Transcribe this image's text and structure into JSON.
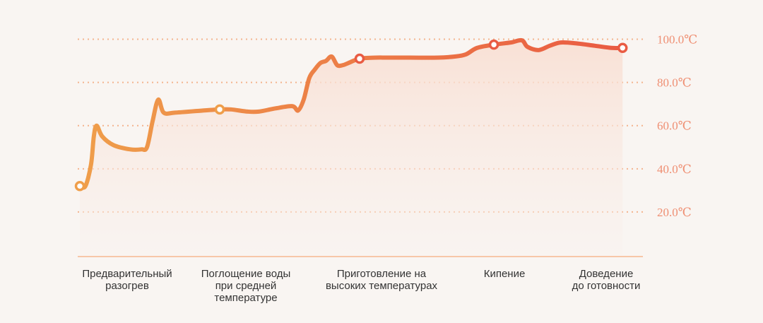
{
  "chart_data": {
    "type": "line",
    "categories": [
      [
        "Предварительный",
        "разогрев"
      ],
      [
        "Поглощение воды",
        "при средней",
        "температуре"
      ],
      [
        "Приготовление на",
        "высоких температурах"
      ],
      [
        "Кипение"
      ],
      [
        "Доведение",
        "до готовности"
      ]
    ],
    "y_ticks": [
      20,
      40,
      60,
      80,
      100
    ],
    "y_tick_labels": [
      "20.0℃",
      "40.0℃",
      "60.0℃",
      "80.0℃",
      "100.0℃"
    ],
    "ylim": [
      0,
      110
    ],
    "xlim": [
      0,
      100
    ],
    "grid": true,
    "series": [
      {
        "x": [
          0,
          1,
          2,
          2.5,
          3,
          4,
          6,
          9,
          11,
          12,
          13,
          14,
          15,
          17,
          22,
          25,
          27,
          30,
          32,
          35,
          38,
          39,
          40,
          41,
          42,
          43,
          44,
          45,
          46,
          47,
          48,
          50,
          53,
          55,
          59,
          64,
          67,
          69,
          71,
          74,
          77,
          79,
          80,
          82,
          84,
          86,
          89,
          92,
          95,
          97
        ],
        "y": [
          32,
          32,
          42,
          55,
          60,
          55,
          51,
          49,
          49,
          50,
          62,
          72,
          66,
          66,
          67,
          67.5,
          67.5,
          66.5,
          66.5,
          68,
          69,
          67,
          72,
          82,
          86,
          89,
          90,
          92,
          88,
          88,
          89,
          91,
          91.5,
          91.5,
          91.5,
          91.5,
          92,
          93,
          96,
          97.5,
          98.5,
          99.5,
          96.5,
          95,
          97,
          98.5,
          98,
          97,
          96,
          96
        ]
      }
    ],
    "markers_x": [
      0,
      25,
      50,
      74,
      97
    ]
  },
  "colors": {
    "grid": "#f4b48e",
    "tick_text": "#ef8f73",
    "baseline": "#f7c7a8",
    "gradient_start": "#ef9e4a",
    "gradient_end": "#e95b43",
    "area_top": "#f9ddd0",
    "area_bottom": "#f9f1ed"
  }
}
